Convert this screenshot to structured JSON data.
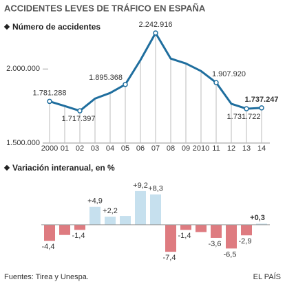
{
  "title": "ACCIDENTES LEVES DE TRÁFICO EN ESPAÑA",
  "source": "Fuentes: Tirea y Unespa.",
  "credit": "EL PAÍS",
  "chart_data": [
    {
      "type": "line",
      "title": "Número de accidentes",
      "categories": [
        "2000",
        "01",
        "02",
        "03",
        "04",
        "05",
        "06",
        "07",
        "08",
        "09",
        "2010",
        "11",
        "12",
        "13",
        "14"
      ],
      "values": [
        1781288,
        1750000,
        1717397,
        1800000,
        1838000,
        1895368,
        2060000,
        2242916,
        2070000,
        2037000,
        1986000,
        1907920,
        1765000,
        1731722,
        1737247
      ],
      "value_labels": [
        "1.781.288",
        null,
        "1.717.397",
        null,
        null,
        "1.895.368",
        null,
        "2.242.916",
        null,
        null,
        null,
        "1.907.920",
        null,
        "1.731.722",
        "1.737.247"
      ],
      "color": "#1f6e9e",
      "ylim": [
        1500000,
        2280000
      ],
      "yticks": [
        {
          "value": 1500000,
          "label": "1.500.000"
        },
        {
          "value": 2000000,
          "label": "2.000.000"
        }
      ]
    },
    {
      "type": "bar",
      "title": "Variación interanual, en %",
      "values": [
        -4.4,
        -2.8,
        -1.4,
        4.9,
        2.2,
        2.4,
        9.2,
        8.3,
        -7.4,
        -1.4,
        -2.0,
        -3.6,
        -6.5,
        -2.9,
        0.3
      ],
      "value_labels": [
        "-4,4",
        null,
        "-1,4",
        "+4,9",
        "+2,2",
        null,
        "+9,2",
        "+8,3",
        "-7,4",
        "-1,4",
        null,
        "-3,6",
        "-6,5",
        "-2,9",
        "+0,3"
      ],
      "positive_color": "#c6e0ee",
      "negative_color": "#de7b80",
      "ylim": [
        -8.5,
        10.5
      ]
    }
  ]
}
